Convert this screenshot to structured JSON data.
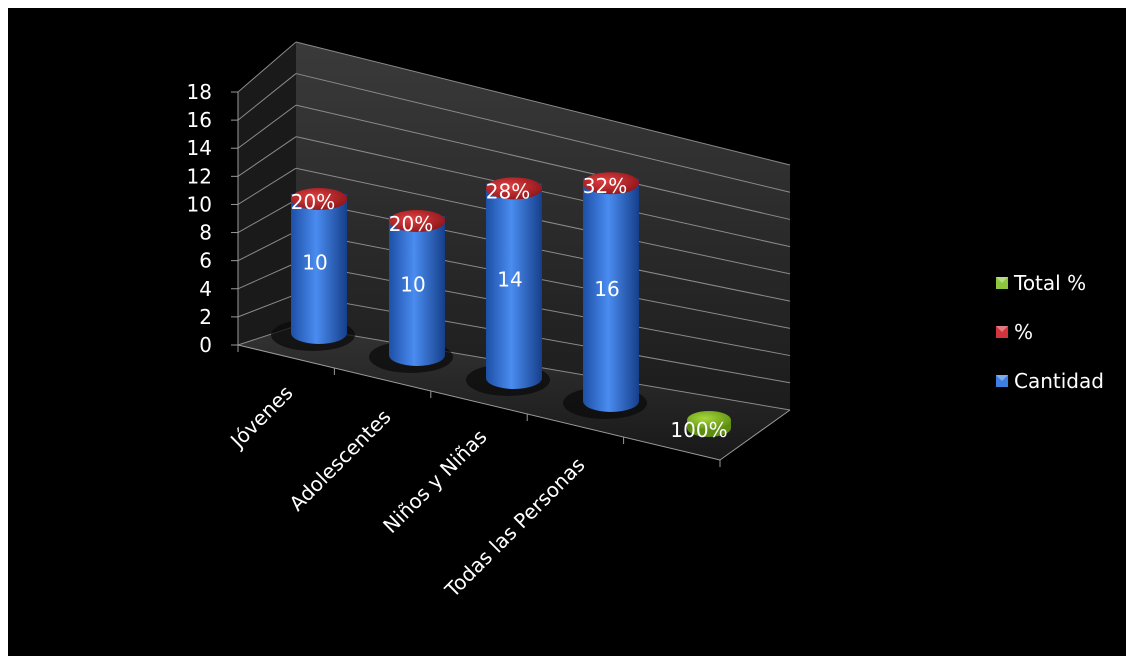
{
  "chart_data": {
    "type": "bar",
    "style": "3d-cylinder",
    "categories": [
      "Jóvenes",
      "Adolescentes",
      "Niños y Niñas",
      "Todas las Personas"
    ],
    "series": [
      {
        "name": "Cantidad",
        "color": "#2e6fd3",
        "values": [
          10,
          10,
          14,
          16
        ],
        "labels": [
          "10",
          "10",
          "14",
          "16"
        ]
      },
      {
        "name": "%",
        "color": "#c0232b",
        "values": [
          0.2,
          0.2,
          0.28,
          0.32
        ],
        "labels": [
          "20%",
          "20%",
          "28%",
          "32%"
        ]
      },
      {
        "name": "Total %",
        "color": "#7fb51e",
        "values": [
          null,
          null,
          null,
          1
        ],
        "labels": [
          "",
          "",
          "",
          "100%"
        ]
      }
    ],
    "ylim": [
      0,
      18
    ],
    "yticks": [
      "0",
      "2",
      "4",
      "6",
      "8",
      "10",
      "12",
      "14",
      "16",
      "18"
    ],
    "grid": true,
    "legend_position": "right"
  }
}
